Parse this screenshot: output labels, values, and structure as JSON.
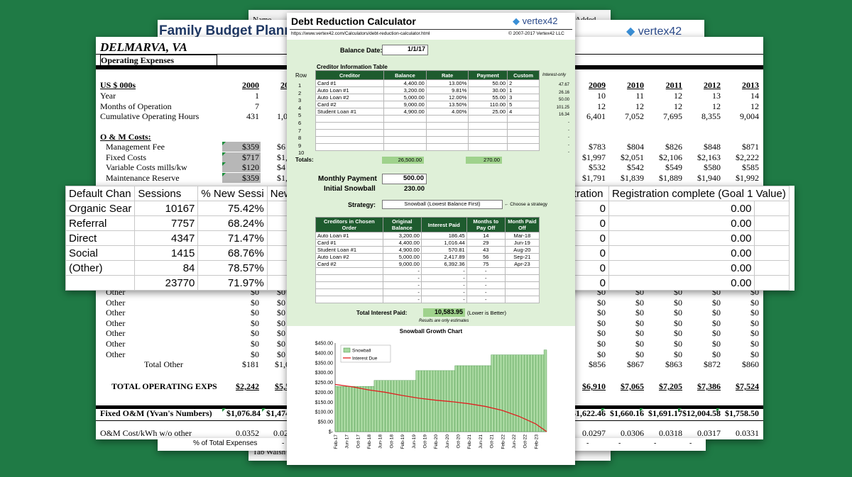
{
  "back_sheet": {
    "top_label": "Name",
    "top_right_label": "Added",
    "bottom_label": "Tab Walsh",
    "bottom_value": "1"
  },
  "family_budget": {
    "title": "Family Budget Plann",
    "logo": "vertex42"
  },
  "operating": {
    "location": "DELMARVA, VA",
    "section": "Operating Expenses",
    "units": "US $ 000s",
    "years_left": [
      "2000",
      "20"
    ],
    "years_right": [
      "2009",
      "2010",
      "2011",
      "2012",
      "2013"
    ],
    "rows_top": [
      {
        "label": "Year",
        "v1": "1",
        "v2": "",
        "right": [
          "10",
          "11",
          "12",
          "13",
          "14"
        ]
      },
      {
        "label": "Months of Operation",
        "v1": "7",
        "v2": "",
        "right": [
          "12",
          "12",
          "12",
          "12",
          "12"
        ]
      },
      {
        "label": "Cumulative Operating Hours",
        "v1": "431",
        "v2": "1,0",
        "right": [
          "6,401",
          "7,052",
          "7,695",
          "8,355",
          "9,004"
        ]
      }
    ],
    "om_title": "O & M Costs:",
    "om_rows": [
      {
        "label": "Management Fee",
        "v1": "$359",
        "v2": "$6",
        "right": [
          "$783",
          "$804",
          "$826",
          "$848",
          "$871"
        ]
      },
      {
        "label": "Fixed Costs",
        "v1": "$717",
        "v2": "$1,6",
        "right": [
          "$1,997",
          "$2,051",
          "$2,106",
          "$2,163",
          "$2,222"
        ]
      },
      {
        "label": "Variable Costs mills/kw",
        "v1": "$120",
        "v2": "$4",
        "right": [
          "$532",
          "$542",
          "$549",
          "$580",
          "$585"
        ]
      },
      {
        "label": "Maintenance Reserve",
        "v1": "$359",
        "v2": "$1,4",
        "right": [
          "$1,791",
          "$1,839",
          "$1,889",
          "$1,940",
          "$1,992"
        ]
      }
    ],
    "other_rows": [
      {
        "label": "Other",
        "v1": "$0",
        "v2": "$0",
        "right": [
          "$0",
          "$0",
          "$0",
          "$0",
          "$0"
        ]
      },
      {
        "label": "Other",
        "v1": "$0",
        "v2": "$0",
        "right": [
          "$0",
          "$0",
          "$0",
          "$0",
          "$0"
        ]
      },
      {
        "label": "Other",
        "v1": "$0",
        "v2": "$0",
        "right": [
          "$0",
          "$0",
          "$0",
          "$0",
          "$0"
        ]
      },
      {
        "label": "Other",
        "v1": "$0",
        "v2": "$0",
        "right": [
          "$0",
          "$0",
          "$0",
          "$0",
          "$0"
        ]
      },
      {
        "label": "Other",
        "v1": "$0",
        "v2": "$0",
        "right": [
          "$0",
          "$0",
          "$0",
          "$0",
          "$0"
        ]
      },
      {
        "label": "Other",
        "v1": "$0",
        "v2": "$0",
        "right": [
          "$0",
          "$0",
          "$0",
          "$0",
          "$0"
        ]
      },
      {
        "label": "Other",
        "v1": "$0",
        "v2": "$0",
        "right": [
          "$0",
          "$0",
          "$0",
          "$0",
          "$0"
        ]
      }
    ],
    "total_other": {
      "label": "Total Other",
      "v1": "$181",
      "v2": "$1,0",
      "right": [
        "$856",
        "$867",
        "$863",
        "$872",
        "$860"
      ]
    },
    "total_exps": {
      "label": "TOTAL OPERATING EXPS",
      "v1": "$2,242",
      "v2": "$5,5",
      "right": [
        "$6,910",
        "$7,065",
        "$7,205",
        "$7,386",
        "$7,524"
      ]
    },
    "fixed_om": {
      "label": "Fixed O&M (Yvan's Numbers)",
      "v1": "$1,076.84",
      "v2": "$1,474",
      "right": [
        "$1,622.46",
        "$1,660.16",
        "$1,691.17",
        "$12,004.58",
        "$1,758.50"
      ]
    },
    "om_cost": {
      "label": "O&M Cost/kWh w/o other",
      "v1": "0.0352",
      "v2": "0.02",
      "right": [
        "0.0297",
        "0.0306",
        "0.0318",
        "0.0317",
        "0.0331"
      ]
    },
    "pct_total": {
      "label": "% of Total Expenses",
      "v1": "-",
      "right": [
        "-",
        "-",
        "-",
        "-"
      ]
    }
  },
  "analytics": {
    "headers": [
      "Default Chan",
      "Sessions",
      "% New Sessi",
      "New Use"
    ],
    "right_headers": [
      "istration",
      "Registration complete (Goal 1 Value)"
    ],
    "rows": [
      {
        "channel": "Organic Sear",
        "sessions": "10167",
        "pct": "75.42%",
        "new": "7",
        "reg": "0",
        "goal": "0.00"
      },
      {
        "channel": "Referral",
        "sessions": "7757",
        "pct": "68.24%",
        "new": "5",
        "reg": "0",
        "goal": "0.00"
      },
      {
        "channel": "Direct",
        "sessions": "4347",
        "pct": "71.47%",
        "new": "3",
        "reg": "0",
        "goal": "0.00"
      },
      {
        "channel": "Social",
        "sessions": "1415",
        "pct": "68.76%",
        "new": "",
        "reg": "0",
        "goal": "0.00"
      },
      {
        "channel": "(Other)",
        "sessions": "84",
        "pct": "78.57%",
        "new": "",
        "reg": "0",
        "goal": "0.00"
      },
      {
        "channel": "",
        "sessions": "23770",
        "pct": "71.97%",
        "new": "17",
        "reg": "0",
        "goal": "0.00"
      }
    ]
  },
  "debt": {
    "title": "Debt Reduction Calculator",
    "logo": "vertex42",
    "url": "https://www.vertex42.com/Calculators/debt-reduction-calculator.html",
    "copyright": "© 2007-2017 Vertex42 LLC",
    "balance_date_label": "Balance Date:",
    "balance_date": "1/1/17",
    "creditor_table_title": "Creditor Information Table",
    "row_label": "Row",
    "interest_only_label": "Interest-only",
    "creditor_headers": [
      "Creditor",
      "Balance",
      "Rate",
      "Payment",
      "Custom"
    ],
    "creditors": [
      {
        "row": "1",
        "name": "Card #1",
        "balance": "4,400.00",
        "rate": "13.00%",
        "payment": "50.00",
        "custom": "2",
        "io": "47.67"
      },
      {
        "row": "2",
        "name": "Auto Loan #1",
        "balance": "3,200.00",
        "rate": "9.81%",
        "payment": "30.00",
        "custom": "1",
        "io": "26.16"
      },
      {
        "row": "3",
        "name": "Auto Loan #2",
        "balance": "5,000.00",
        "rate": "12.00%",
        "payment": "55.00",
        "custom": "3",
        "io": "50.00"
      },
      {
        "row": "4",
        "name": "Card #2",
        "balance": "9,000.00",
        "rate": "13.50%",
        "payment": "110.00",
        "custom": "5",
        "io": "101.25"
      },
      {
        "row": "5",
        "name": "Student Loan #1",
        "balance": "4,900.00",
        "rate": "4.00%",
        "payment": "25.00",
        "custom": "4",
        "io": "16.34"
      },
      {
        "row": "6",
        "name": "",
        "balance": "",
        "rate": "",
        "payment": "",
        "custom": "",
        "io": "-"
      },
      {
        "row": "7",
        "name": "",
        "balance": "",
        "rate": "",
        "payment": "",
        "custom": "",
        "io": "-"
      },
      {
        "row": "8",
        "name": "",
        "balance": "",
        "rate": "",
        "payment": "",
        "custom": "",
        "io": "-"
      },
      {
        "row": "9",
        "name": "",
        "balance": "",
        "rate": "",
        "payment": "",
        "custom": "",
        "io": "-"
      },
      {
        "row": "10",
        "name": "",
        "balance": "",
        "rate": "",
        "payment": "",
        "custom": "",
        "io": "-"
      }
    ],
    "totals_label": "Totals:",
    "total_balance": "26,500.00",
    "total_payment": "270.00",
    "monthly_payment_label": "Monthly Payment",
    "monthly_payment": "500.00",
    "initial_snowball_label": "Initial Snowball",
    "initial_snowball": "230.00",
    "strategy_label": "Strategy:",
    "strategy": "Snowball (Lowest Balance First)",
    "strategy_hint": "← Choose a strategy",
    "order_headers": [
      "Creditors in Chosen Order",
      "Original Balance",
      "Interest Paid",
      "Months to Pay Off",
      "Month Paid Off"
    ],
    "order_rows": [
      {
        "name": "Auto Loan #1",
        "bal": "3,200.00",
        "int": "186.45",
        "months": "14",
        "paid": "Mar-18"
      },
      {
        "name": "Card #1",
        "bal": "4,400.00",
        "int": "1,016.44",
        "months": "29",
        "paid": "Jun-19"
      },
      {
        "name": "Student Loan #1",
        "bal": "4,900.00",
        "int": "570.81",
        "months": "43",
        "paid": "Aug-20"
      },
      {
        "name": "Auto Loan #2",
        "bal": "5,000.00",
        "int": "2,417.89",
        "months": "56",
        "paid": "Sep-21"
      },
      {
        "name": "Card #2",
        "bal": "9,000.00",
        "int": "6,392.36",
        "months": "75",
        "paid": "Apr-23"
      },
      {
        "name": "",
        "bal": "-",
        "int": "-",
        "months": "-",
        "paid": ""
      },
      {
        "name": "",
        "bal": "-",
        "int": "-",
        "months": "-",
        "paid": ""
      },
      {
        "name": "",
        "bal": "-",
        "int": "-",
        "months": "-",
        "paid": ""
      },
      {
        "name": "",
        "bal": "-",
        "int": "-",
        "months": "-",
        "paid": ""
      },
      {
        "name": "",
        "bal": "-",
        "int": "-",
        "months": "-",
        "paid": ""
      }
    ],
    "total_interest_label": "Total Interest Paid:",
    "total_interest": "10,583.95",
    "lower_better": "(Lower is Better)",
    "estimates_note": "Results are only estimates"
  },
  "chart_data": {
    "type": "bar",
    "title": "Snowball Growth Chart",
    "categories": [
      "Feb-17",
      "Jun-17",
      "Oct-17",
      "Feb-18",
      "Jun-18",
      "Oct-18",
      "Feb-19",
      "Jun-19",
      "Oct-19",
      "Feb-20",
      "Jun-20",
      "Oct-20",
      "Feb-21",
      "Jun-21",
      "Oct-21",
      "Feb-22",
      "Jun-22",
      "Oct-22",
      "Feb-23"
    ],
    "yticks": [
      "$-",
      "$50.00",
      "$100.00",
      "$150.00",
      "$200.00",
      "$250.00",
      "$300.00",
      "$350.00",
      "$400.00",
      "$450.00"
    ],
    "ylim": [
      0,
      450
    ],
    "series": [
      {
        "name": "Snowball",
        "kind": "bar",
        "color": "#a8d8a0",
        "stroke": "#3c8c3c",
        "steps": [
          [
            0,
            14,
            230
          ],
          [
            14,
            29,
            260
          ],
          [
            29,
            43,
            310
          ],
          [
            43,
            56,
            335
          ],
          [
            56,
            75,
            390
          ],
          [
            75,
            76,
            415
          ]
        ]
      },
      {
        "name": "Interest Due",
        "kind": "line",
        "color": "#e02020",
        "points": [
          [
            0,
            240
          ],
          [
            6,
            228
          ],
          [
            12,
            212
          ],
          [
            18,
            200
          ],
          [
            24,
            184
          ],
          [
            30,
            170
          ],
          [
            36,
            160
          ],
          [
            42,
            152
          ],
          [
            48,
            142
          ],
          [
            54,
            128
          ],
          [
            60,
            108
          ],
          [
            66,
            78
          ],
          [
            72,
            40
          ],
          [
            76,
            0
          ]
        ]
      }
    ],
    "months": 76
  }
}
